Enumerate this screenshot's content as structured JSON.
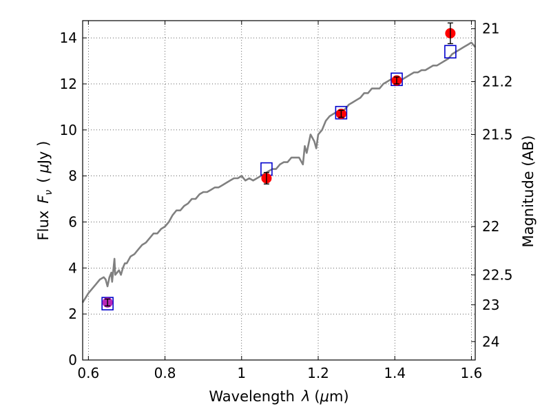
{
  "chart_data": {
    "type": "scatter",
    "xlabel_text": "Wavelength",
    "xlabel_symbol": "λ",
    "xlabel_unit_open": "(",
    "xlabel_unit_mu": "μ",
    "xlabel_unit_rest": "m)",
    "ylabel_text": "Flux",
    "ylabel_symbol": "F",
    "ylabel_sub": "ν",
    "ylabel_unit_open": "(",
    "ylabel_unit_mu": "μ",
    "ylabel_unit_rest": "Jy )",
    "y2label": "Magnitude (AB)",
    "xlim": [
      0.585,
      1.61
    ],
    "ylim": [
      0,
      14.75
    ],
    "grid": true,
    "x_ticks": [
      0.6,
      0.8,
      1.0,
      1.2,
      1.4,
      1.6
    ],
    "x_tick_labels": [
      "0.6",
      "0.8",
      "1",
      "1.2",
      "1.4",
      "1.6"
    ],
    "y_ticks": [
      0,
      2,
      4,
      6,
      8,
      10,
      12,
      14
    ],
    "y_tick_labels": [
      "0",
      "2",
      "4",
      "6",
      "8",
      "10",
      "12",
      "14"
    ],
    "y2_tick_labels": [
      "21",
      "21.2",
      "21.5",
      "22",
      "22.5",
      "23",
      "24"
    ],
    "y2_tick_flux": [
      14.4,
      12.1,
      9.8,
      5.8,
      3.7,
      2.4,
      0.8
    ],
    "series": [
      {
        "kind": "line",
        "color": "#808080",
        "x": [
          0.585,
          0.6,
          0.62,
          0.63,
          0.64,
          0.645,
          0.65,
          0.655,
          0.66,
          0.662,
          0.665,
          0.668,
          0.67,
          0.675,
          0.68,
          0.685,
          0.69,
          0.695,
          0.7,
          0.71,
          0.72,
          0.73,
          0.74,
          0.75,
          0.76,
          0.77,
          0.78,
          0.79,
          0.8,
          0.81,
          0.82,
          0.83,
          0.84,
          0.85,
          0.86,
          0.87,
          0.88,
          0.89,
          0.9,
          0.91,
          0.92,
          0.93,
          0.94,
          0.95,
          0.96,
          0.97,
          0.98,
          0.99,
          1.0,
          1.01,
          1.02,
          1.03,
          1.04,
          1.05,
          1.06,
          1.07,
          1.08,
          1.09,
          1.1,
          1.11,
          1.12,
          1.13,
          1.14,
          1.15,
          1.16,
          1.165,
          1.17,
          1.18,
          1.19,
          1.195,
          1.2,
          1.21,
          1.22,
          1.23,
          1.24,
          1.25,
          1.26,
          1.27,
          1.28,
          1.29,
          1.3,
          1.31,
          1.32,
          1.33,
          1.34,
          1.35,
          1.36,
          1.37,
          1.38,
          1.39,
          1.4,
          1.41,
          1.42,
          1.43,
          1.44,
          1.45,
          1.46,
          1.47,
          1.48,
          1.49,
          1.5,
          1.51,
          1.52,
          1.53,
          1.54,
          1.55,
          1.56,
          1.57,
          1.58,
          1.59,
          1.6,
          1.61
        ],
        "y": [
          2.5,
          2.9,
          3.3,
          3.5,
          3.6,
          3.5,
          3.2,
          3.6,
          3.8,
          3.4,
          3.9,
          4.4,
          3.7,
          3.8,
          3.9,
          3.7,
          4.0,
          4.2,
          4.2,
          4.5,
          4.6,
          4.8,
          5.0,
          5.1,
          5.3,
          5.5,
          5.5,
          5.7,
          5.8,
          6.0,
          6.3,
          6.5,
          6.5,
          6.7,
          6.8,
          7.0,
          7.0,
          7.2,
          7.3,
          7.3,
          7.4,
          7.5,
          7.5,
          7.6,
          7.7,
          7.8,
          7.9,
          7.9,
          8.0,
          7.8,
          7.9,
          7.8,
          7.9,
          8.0,
          8.1,
          8.2,
          8.3,
          8.3,
          8.5,
          8.6,
          8.6,
          8.8,
          8.8,
          8.8,
          8.5,
          9.3,
          9.0,
          9.8,
          9.5,
          9.2,
          9.8,
          10.0,
          10.4,
          10.6,
          10.7,
          10.8,
          10.8,
          10.9,
          11.1,
          11.2,
          11.3,
          11.4,
          11.6,
          11.6,
          11.8,
          11.8,
          11.8,
          12.0,
          12.1,
          12.2,
          12.1,
          12.0,
          12.2,
          12.3,
          12.4,
          12.5,
          12.5,
          12.6,
          12.6,
          12.7,
          12.8,
          12.8,
          12.9,
          13.0,
          13.1,
          13.3,
          13.4,
          13.5,
          13.6,
          13.7,
          13.8,
          13.6
        ]
      },
      {
        "kind": "open-square",
        "color": "#0000cc",
        "x": [
          0.65,
          1.065,
          1.26,
          1.405,
          1.545
        ],
        "y": [
          2.45,
          8.3,
          10.75,
          12.2,
          13.4
        ]
      },
      {
        "kind": "filled-circle",
        "color": "#ff0000",
        "x": [
          0.65,
          1.065,
          1.26,
          1.405,
          1.545
        ],
        "y": [
          2.5,
          7.9,
          10.7,
          12.15,
          14.2
        ],
        "yerr": [
          0.15,
          0.25,
          0.15,
          0.15,
          0.45
        ]
      }
    ]
  }
}
